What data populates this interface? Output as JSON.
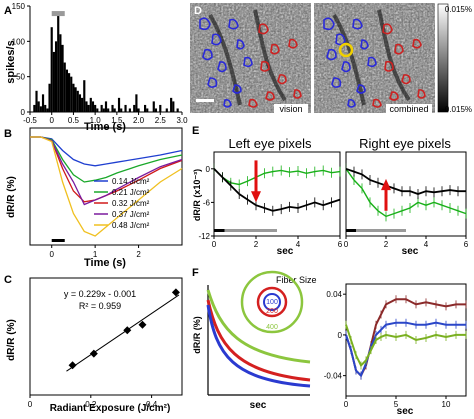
{
  "panels": {
    "A": {
      "label": "A",
      "ylabel": "spikes/s",
      "xlabel": "Time (s)",
      "yticks": [
        "0",
        "50",
        "100",
        "150"
      ],
      "xticks": [
        "-0.5",
        "0",
        "0.5",
        "1.0",
        "1.5",
        "2.0",
        "2.5",
        "3.0"
      ]
    },
    "B": {
      "label": "B",
      "ylabel": "dR/R (%)",
      "xlabel": "Time (s)",
      "xticks": [
        "0",
        "1",
        "2"
      ],
      "legend": [
        {
          "text": "0.14 J/cm²",
          "color": "#1f3fd0"
        },
        {
          "text": "0.21 J/cm²",
          "color": "#1aa82a"
        },
        {
          "text": "0.32 J/cm²",
          "color": "#d01a1a"
        },
        {
          "text": "0.37 J/cm²",
          "color": "#7a1a9e"
        },
        {
          "text": "0.48 J/cm²",
          "color": "#f0c020"
        }
      ]
    },
    "C": {
      "label": "C",
      "ylabel": "dR/R (%)",
      "xlabel": "Radiant Exposure (J/cm²)",
      "xticks": [
        "0",
        "0.2",
        "0.4"
      ],
      "equation": "y = 0.229x - 0.001",
      "r2": "R² = 0.959"
    },
    "D": {
      "label": "D",
      "tag_left": "vision",
      "tag_right": "combined",
      "colorbar_top": "0.015%",
      "colorbar_bottom": "-0.015%"
    },
    "E": {
      "label": "E",
      "title_left": "Left eye pixels",
      "title_right": "Right eye pixels",
      "ylabel": "dR/R (x10⁻³)",
      "yticks": [
        "0",
        "-6",
        "-12"
      ],
      "xticks": [
        "0",
        "2",
        "4",
        "6"
      ],
      "xlabel_left": "sec",
      "xlabel_right": "sec"
    },
    "F": {
      "label": "F",
      "ylabel": "dR/R (%)",
      "xlabel_left": "sec",
      "xlabel_right": "sec",
      "fiber_title": "Fiber Size",
      "fiber_sizes": [
        "100",
        "200",
        "400"
      ],
      "yticks_right": [
        "0.04",
        "0",
        "-0.04"
      ],
      "xticks_right": [
        "0",
        "5",
        "10"
      ]
    }
  },
  "chart_data": [
    {
      "type": "bar",
      "panel": "A",
      "xlabel": "Time (s)",
      "ylabel": "spikes/s",
      "xlim": [
        -0.5,
        3.0
      ],
      "ylim": [
        0,
        150
      ],
      "stimulus_bar": [
        0,
        0.3
      ],
      "x": [
        -0.45,
        -0.4,
        -0.35,
        -0.3,
        -0.25,
        -0.2,
        -0.15,
        -0.1,
        -0.05,
        0.0,
        0.05,
        0.1,
        0.15,
        0.2,
        0.25,
        0.3,
        0.35,
        0.4,
        0.45,
        0.5,
        0.55,
        0.6,
        0.65,
        0.7,
        0.75,
        0.8,
        0.85,
        0.9,
        0.95,
        1.0,
        1.05,
        1.1,
        1.15,
        1.2,
        1.25,
        1.3,
        1.35,
        1.4,
        1.45,
        1.5,
        1.55,
        1.6,
        1.65,
        1.7,
        1.75,
        1.8,
        1.85,
        1.9,
        1.95,
        2.0,
        2.05,
        2.1,
        2.15,
        2.2,
        2.25,
        2.3,
        2.35,
        2.4,
        2.45,
        2.5,
        2.55,
        2.6,
        2.65,
        2.7,
        2.75,
        2.8,
        2.85,
        2.9,
        2.95
      ],
      "values": [
        0,
        10,
        30,
        15,
        8,
        25,
        10,
        5,
        40,
        120,
        85,
        100,
        140,
        110,
        95,
        70,
        60,
        55,
        50,
        40,
        35,
        30,
        25,
        20,
        45,
        15,
        10,
        20,
        15,
        10,
        5,
        0,
        10,
        5,
        15,
        5,
        0,
        10,
        5,
        0,
        20,
        5,
        0,
        10,
        0,
        5,
        0,
        10,
        25,
        5,
        0,
        0,
        10,
        5,
        0,
        0,
        15,
        5,
        0,
        10,
        0,
        0,
        5,
        0,
        20,
        15,
        0,
        5,
        0
      ]
    },
    {
      "type": "line",
      "panel": "B",
      "xlabel": "Time (s)",
      "ylabel": "dR/R (%)",
      "xlim": [
        -0.5,
        3.0
      ],
      "ylim": [
        -0.12,
        0.01
      ],
      "x": [
        -0.5,
        -0.25,
        0,
        0.25,
        0.5,
        0.75,
        1.0,
        1.25,
        1.5,
        2.0,
        2.5,
        3.0
      ],
      "series": [
        {
          "name": "0.14 J/cm²",
          "values": [
            0,
            0,
            -0.002,
            -0.015,
            -0.025,
            -0.03,
            -0.032,
            -0.03,
            -0.028,
            -0.024,
            -0.02,
            -0.015
          ]
        },
        {
          "name": "0.21 J/cm²",
          "values": [
            0,
            0,
            -0.003,
            -0.025,
            -0.042,
            -0.05,
            -0.048,
            -0.045,
            -0.04,
            -0.032,
            -0.025,
            -0.02
          ]
        },
        {
          "name": "0.32 J/cm²",
          "values": [
            0,
            0,
            -0.004,
            -0.035,
            -0.06,
            -0.072,
            -0.07,
            -0.065,
            -0.06,
            -0.048,
            -0.035,
            -0.026
          ]
        },
        {
          "name": "0.37 J/cm²",
          "values": [
            0,
            0,
            -0.004,
            -0.03,
            -0.05,
            -0.075,
            -0.07,
            -0.065,
            -0.058,
            -0.045,
            -0.033,
            -0.025
          ]
        },
        {
          "name": "0.48 J/cm²",
          "values": [
            0,
            0,
            -0.005,
            -0.05,
            -0.085,
            -0.105,
            -0.11,
            -0.1,
            -0.09,
            -0.07,
            -0.05,
            -0.035
          ]
        }
      ]
    },
    {
      "type": "scatter",
      "panel": "C",
      "xlabel": "Radiant Exposure (J/cm²)",
      "ylabel": "dR/R (%)",
      "xlim": [
        0,
        0.5
      ],
      "ylim": [
        0,
        0.13
      ],
      "x": [
        0.14,
        0.21,
        0.32,
        0.37,
        0.48
      ],
      "values": [
        0.033,
        0.046,
        0.072,
        0.078,
        0.114
      ],
      "fit": {
        "slope": 0.229,
        "intercept": -0.001
      }
    },
    {
      "type": "line",
      "panel": "E-left",
      "title": "Left eye pixels",
      "xlabel": "sec",
      "xlim": [
        0,
        6
      ],
      "ylim": [
        -12,
        3
      ],
      "x": [
        0,
        0.4,
        0.8,
        1.2,
        1.6,
        2.0,
        2.4,
        2.8,
        3.2,
        3.6,
        4.0,
        4.4,
        4.8,
        5.2,
        5.6,
        6.0
      ],
      "series": [
        {
          "color": "#19b019",
          "values": [
            0,
            -1.5,
            -2.5,
            -2.8,
            -2.2,
            -1.5,
            -0.8,
            -0.5,
            -0.3,
            -0.6,
            -0.4,
            -0.8,
            -0.5,
            -0.3,
            -0.7,
            -0.5
          ]
        },
        {
          "color": "#000000",
          "values": [
            0,
            -1.5,
            -3,
            -4.5,
            -5.5,
            -6.5,
            -7,
            -7.5,
            -7.2,
            -6.8,
            -7,
            -6.5,
            -6,
            -6.5,
            -6,
            -5.5
          ]
        }
      ]
    },
    {
      "type": "line",
      "panel": "E-right",
      "title": "Right eye pixels",
      "xlabel": "sec",
      "xlim": [
        0,
        6
      ],
      "ylim": [
        -12,
        3
      ],
      "x": [
        0,
        0.4,
        0.8,
        1.2,
        1.6,
        2.0,
        2.4,
        2.8,
        3.2,
        3.6,
        4.0,
        4.4,
        4.8,
        5.2,
        5.6,
        6.0
      ],
      "series": [
        {
          "color": "#19b019",
          "values": [
            0,
            -2,
            -3.5,
            -6,
            -7.5,
            -8.5,
            -8,
            -7.5,
            -7,
            -6,
            -6.5,
            -6,
            -6.5,
            -7,
            -7.5,
            -8
          ]
        },
        {
          "color": "#000000",
          "values": [
            0,
            -0.5,
            -1,
            -2,
            -2.5,
            -3,
            -3.5,
            -4,
            -4,
            -4.5,
            -4,
            -4.2,
            -4,
            -3.8,
            -4,
            -4
          ]
        }
      ]
    },
    {
      "type": "line",
      "panel": "F-right",
      "xlabel": "sec",
      "xlim": [
        0,
        12
      ],
      "ylim": [
        -0.06,
        0.05
      ],
      "x": [
        0,
        0.5,
        1,
        1.5,
        2,
        2.5,
        3,
        3.5,
        4,
        5,
        6,
        7,
        8,
        9,
        10,
        11,
        12
      ],
      "series": [
        {
          "color": "#8b2a2a",
          "values": [
            0,
            -0.015,
            -0.035,
            -0.04,
            -0.03,
            -0.01,
            0.01,
            0.02,
            0.03,
            0.035,
            0.035,
            0.03,
            0.032,
            0.03,
            0.028,
            0.03,
            0.03
          ]
        },
        {
          "color": "#2a46c8",
          "values": [
            0,
            -0.015,
            -0.035,
            -0.04,
            -0.028,
            -0.012,
            0.0,
            0.005,
            0.01,
            0.012,
            0.012,
            0.01,
            0.01,
            0.012,
            0.01,
            0.01,
            0.01
          ]
        },
        {
          "color": "#7ab020",
          "values": [
            0.01,
            -0.005,
            -0.02,
            -0.03,
            -0.025,
            -0.015,
            -0.005,
            -0.002,
            0.0,
            -0.002,
            0.0,
            -0.005,
            -0.003,
            0.0,
            -0.002,
            0.0,
            0.0
          ]
        }
      ]
    }
  ]
}
